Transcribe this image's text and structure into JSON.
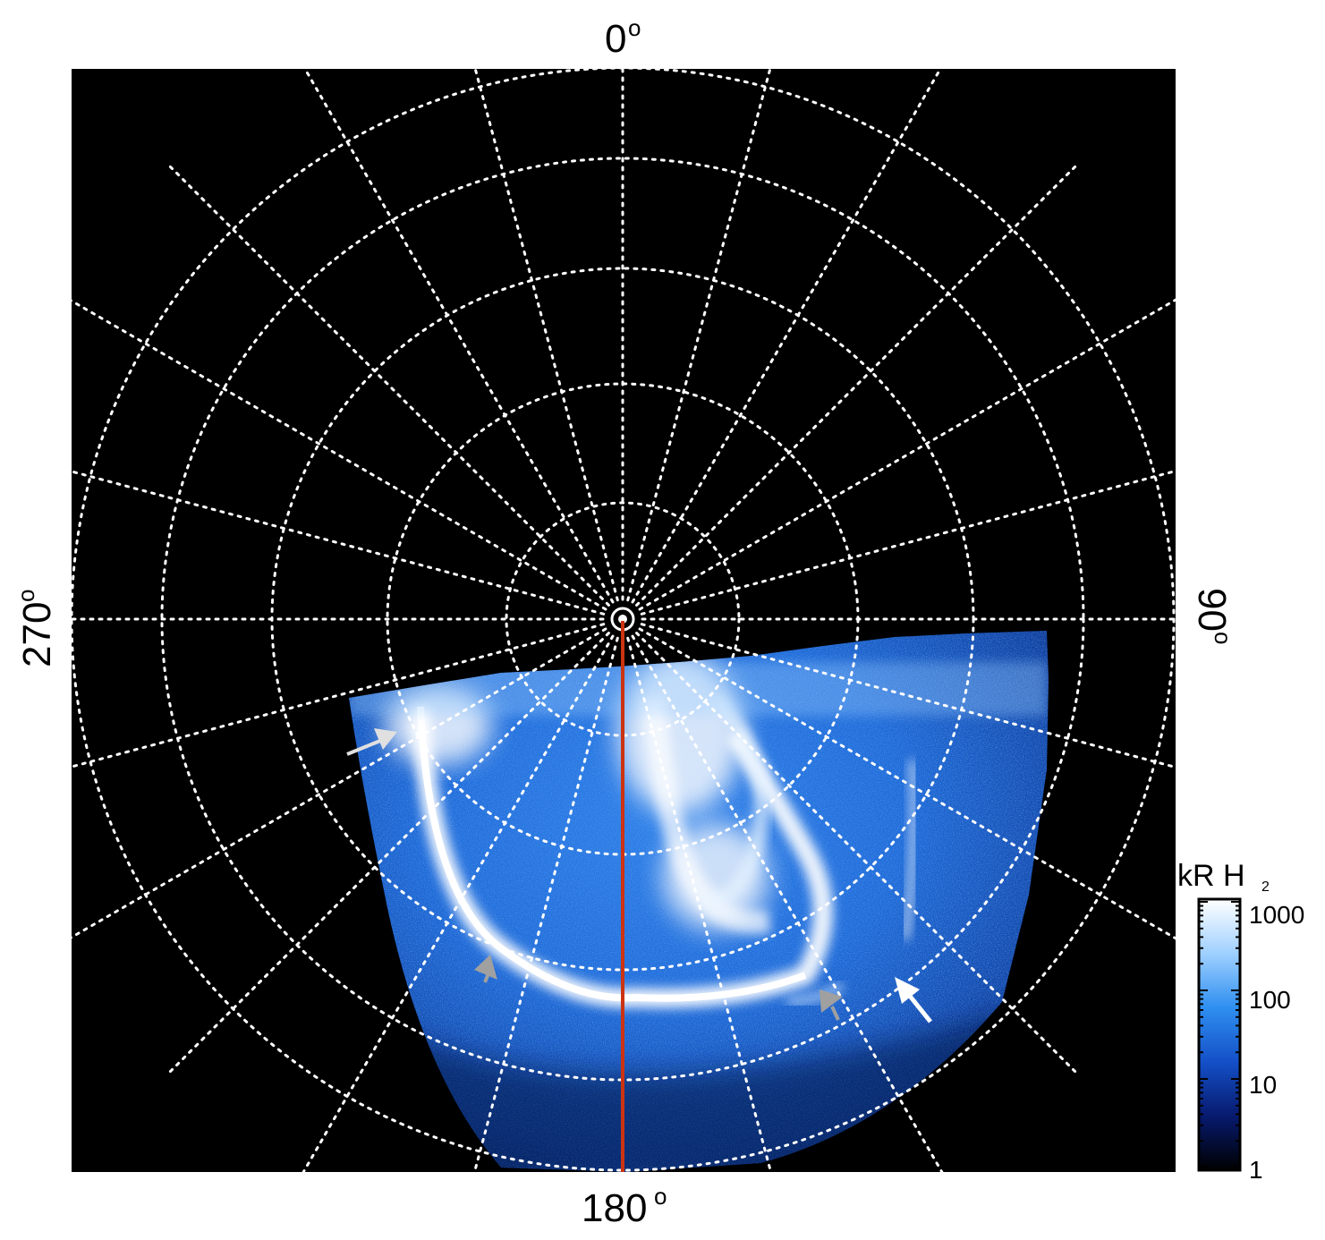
{
  "image": {
    "subject": "UV auroral emission polar projection",
    "colors": {
      "background": "#000000",
      "grid": "#ffffff",
      "meridian_line": "#cc3311",
      "aurora_bright": "#ffffff",
      "aurora_mid": "#2f80e8",
      "aurora_dim": "#0a2a7a",
      "arrow_white": "#ffffff",
      "arrow_gray": "#a0a0a0"
    }
  },
  "labels": {
    "top": "0",
    "bottom": "180",
    "left": "270",
    "right": "90",
    "degree_symbol": "o"
  },
  "colorbar": {
    "title": "kR H",
    "title_subscript": "2",
    "ticks": [
      "1000",
      "100",
      "10",
      "1"
    ],
    "colors": [
      "#ffffff",
      "#9fd0ff",
      "#2f8ff0",
      "#1450c8",
      "#071a6e",
      "#000000"
    ],
    "scale": "log"
  },
  "annotations": {
    "arrows": [
      {
        "name": "white-arrow-upper-left",
        "color": "white"
      },
      {
        "name": "gray-arrow-lower-left",
        "color": "gray"
      },
      {
        "name": "gray-arrow-lower-right",
        "color": "gray"
      },
      {
        "name": "white-arrow-right",
        "color": "white"
      }
    ]
  }
}
